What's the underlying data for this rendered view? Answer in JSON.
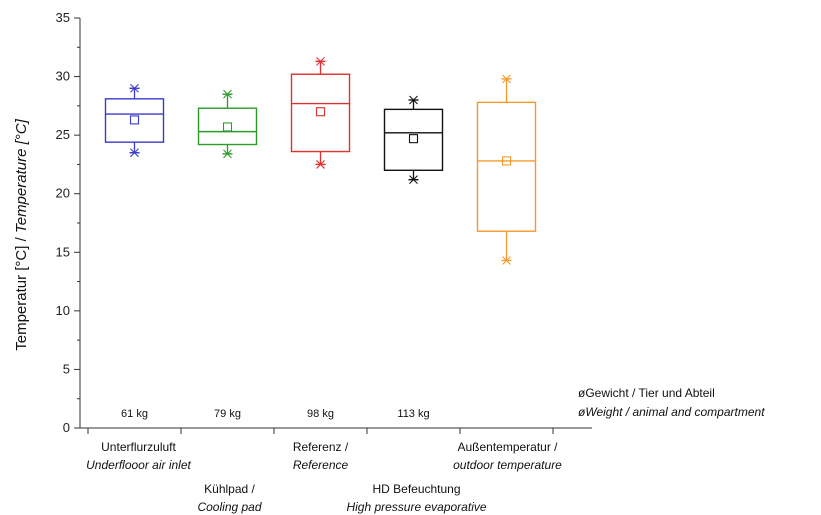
{
  "chart_data": {
    "type": "box",
    "ylabel_parts": [
      "Temperatur [°C] / ",
      "Temperature [°C]"
    ],
    "ylim": [
      0,
      35
    ],
    "yticks": [
      0,
      5,
      10,
      15,
      20,
      25,
      30,
      35
    ],
    "grid": false,
    "categories": [
      {
        "label": "Unterflurzuluft",
        "sublabel": "Underflooor air inlet",
        "color": "#3a3acc",
        "min": 23.5,
        "q1": 24.4,
        "median": 26.8,
        "q3": 28.1,
        "max": 29.0,
        "mean": 26.3,
        "weight": "61 kg"
      },
      {
        "label": "Kühlpad /",
        "sublabel": "Cooling pad",
        "color": "#2e9a2e",
        "min": 23.4,
        "q1": 24.2,
        "median": 25.3,
        "q3": 27.3,
        "max": 28.5,
        "mean": 25.7,
        "weight": "79 kg"
      },
      {
        "label": "Referenz /",
        "sublabel": "Reference",
        "color": "#e03030",
        "min": 22.5,
        "q1": 23.6,
        "median": 27.7,
        "q3": 30.2,
        "max": 31.3,
        "mean": 27.0,
        "weight": "98 kg"
      },
      {
        "label": "HD Befeuchtung",
        "sublabel": "High pressure evaporative",
        "color": "#111111",
        "min": 21.2,
        "q1": 22.0,
        "median": 25.2,
        "q3": 27.2,
        "max": 28.0,
        "mean": 24.7,
        "weight": "113 kg"
      },
      {
        "label": "Außentemperatur /",
        "sublabel": "outdoor temperature",
        "color": "#f59a2a",
        "min": 14.3,
        "q1": 16.8,
        "median": 22.8,
        "q3": 27.8,
        "max": 29.8,
        "mean": 22.8,
        "weight": ""
      }
    ],
    "annotation": {
      "title": "øGewicht / Tier und Abteil",
      "subtitle": "øWeight / animal and compartment"
    }
  }
}
